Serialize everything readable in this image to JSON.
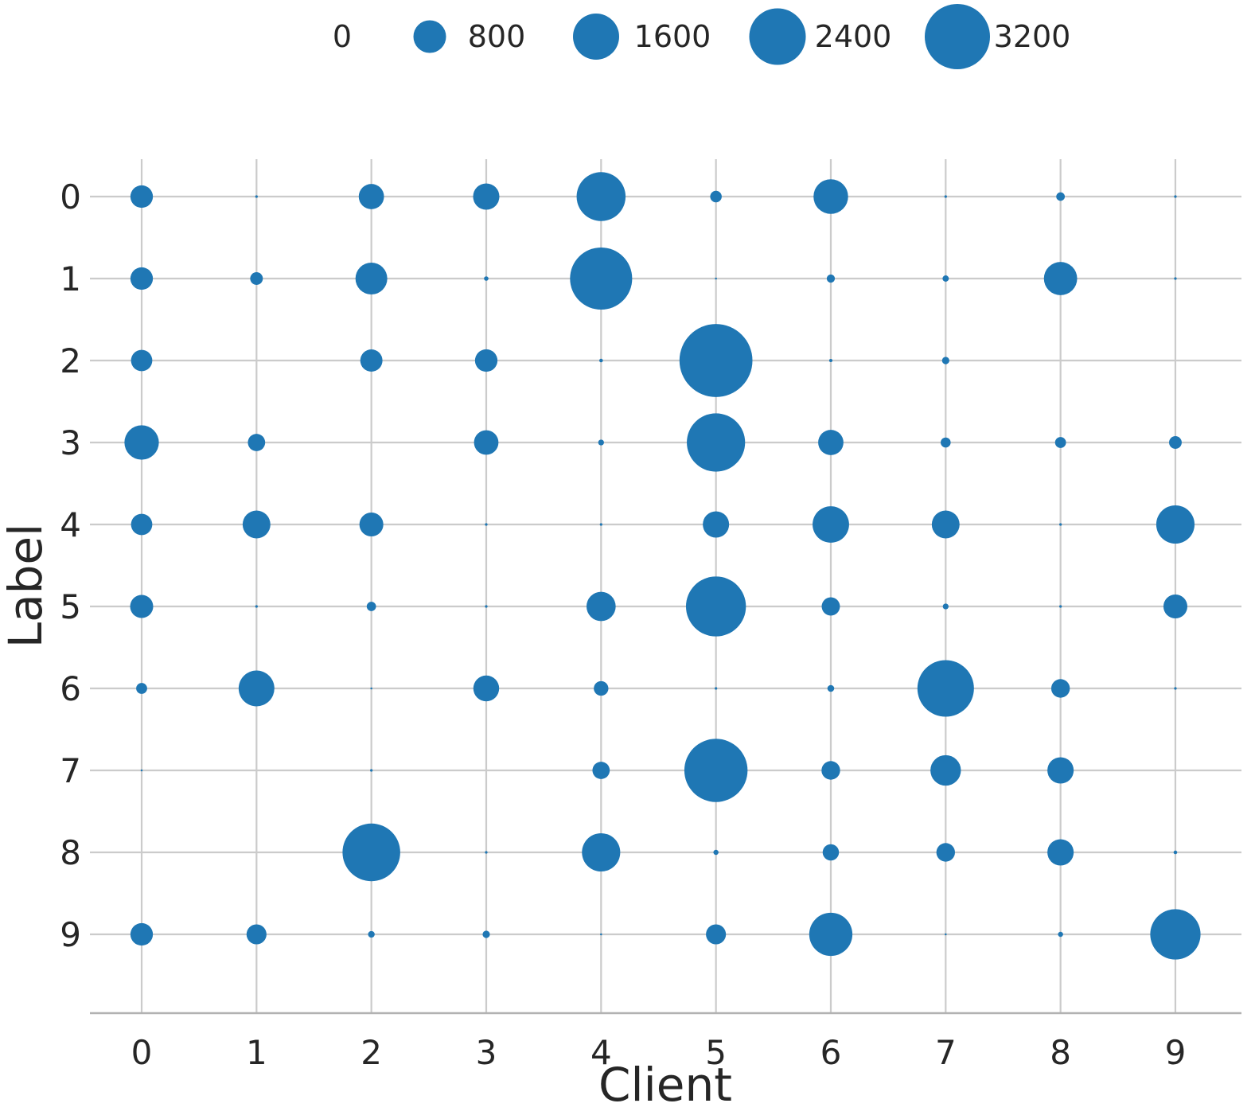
{
  "chart_data": {
    "type": "scatter",
    "subtype": "bubble-matrix",
    "title": "",
    "xlabel": "Client",
    "ylabel": "Label",
    "x_tick_labels": [
      "0",
      "1",
      "2",
      "3",
      "4",
      "5",
      "6",
      "7",
      "8",
      "9"
    ],
    "y_tick_labels": [
      "0",
      "1",
      "2",
      "3",
      "4",
      "5",
      "6",
      "7",
      "8",
      "9"
    ],
    "x_values": [
      0,
      1,
      2,
      3,
      4,
      5,
      6,
      7,
      8,
      9
    ],
    "y_values": [
      0,
      1,
      2,
      3,
      4,
      5,
      6,
      7,
      8,
      9
    ],
    "grid": true,
    "legend": {
      "position": "top",
      "values": [
        0,
        800,
        1600,
        2400,
        3200
      ],
      "labels": [
        "0",
        "800",
        "1600",
        "2400",
        "3200"
      ]
    },
    "size_semantics": "bubble area proportional to sample count",
    "sizes_by_label_row": [
      [
        380,
        5,
        480,
        520,
        1800,
        100,
        900,
        5,
        55,
        5
      ],
      [
        380,
        120,
        760,
        15,
        2900,
        3,
        50,
        30,
        830,
        5
      ],
      [
        340,
        0,
        370,
        380,
        10,
        4000,
        8,
        40,
        0,
        0
      ],
      [
        890,
        225,
        0,
        450,
        25,
        2550,
        480,
        75,
        90,
        120
      ],
      [
        340,
        580,
        430,
        5,
        5,
        520,
        1000,
        580,
        5,
        1100
      ],
      [
        400,
        5,
        65,
        5,
        640,
        2700,
        250,
        25,
        5,
        430
      ],
      [
        90,
        960,
        3,
        500,
        160,
        5,
        35,
        2400,
        260,
        5
      ],
      [
        3,
        0,
        5,
        0,
        225,
        3000,
        260,
        700,
        520,
        0
      ],
      [
        0,
        0,
        2500,
        5,
        1100,
        20,
        200,
        260,
        520,
        10
      ],
      [
        380,
        300,
        33,
        40,
        3,
        300,
        1400,
        3,
        20,
        1900
      ]
    ],
    "marker_color": "#1f77b4"
  },
  "style": {
    "accent": "#1f77b4",
    "grid_color": "#cbcbcb",
    "spine_color": "#b2b2b2",
    "text_color": "#262626"
  }
}
